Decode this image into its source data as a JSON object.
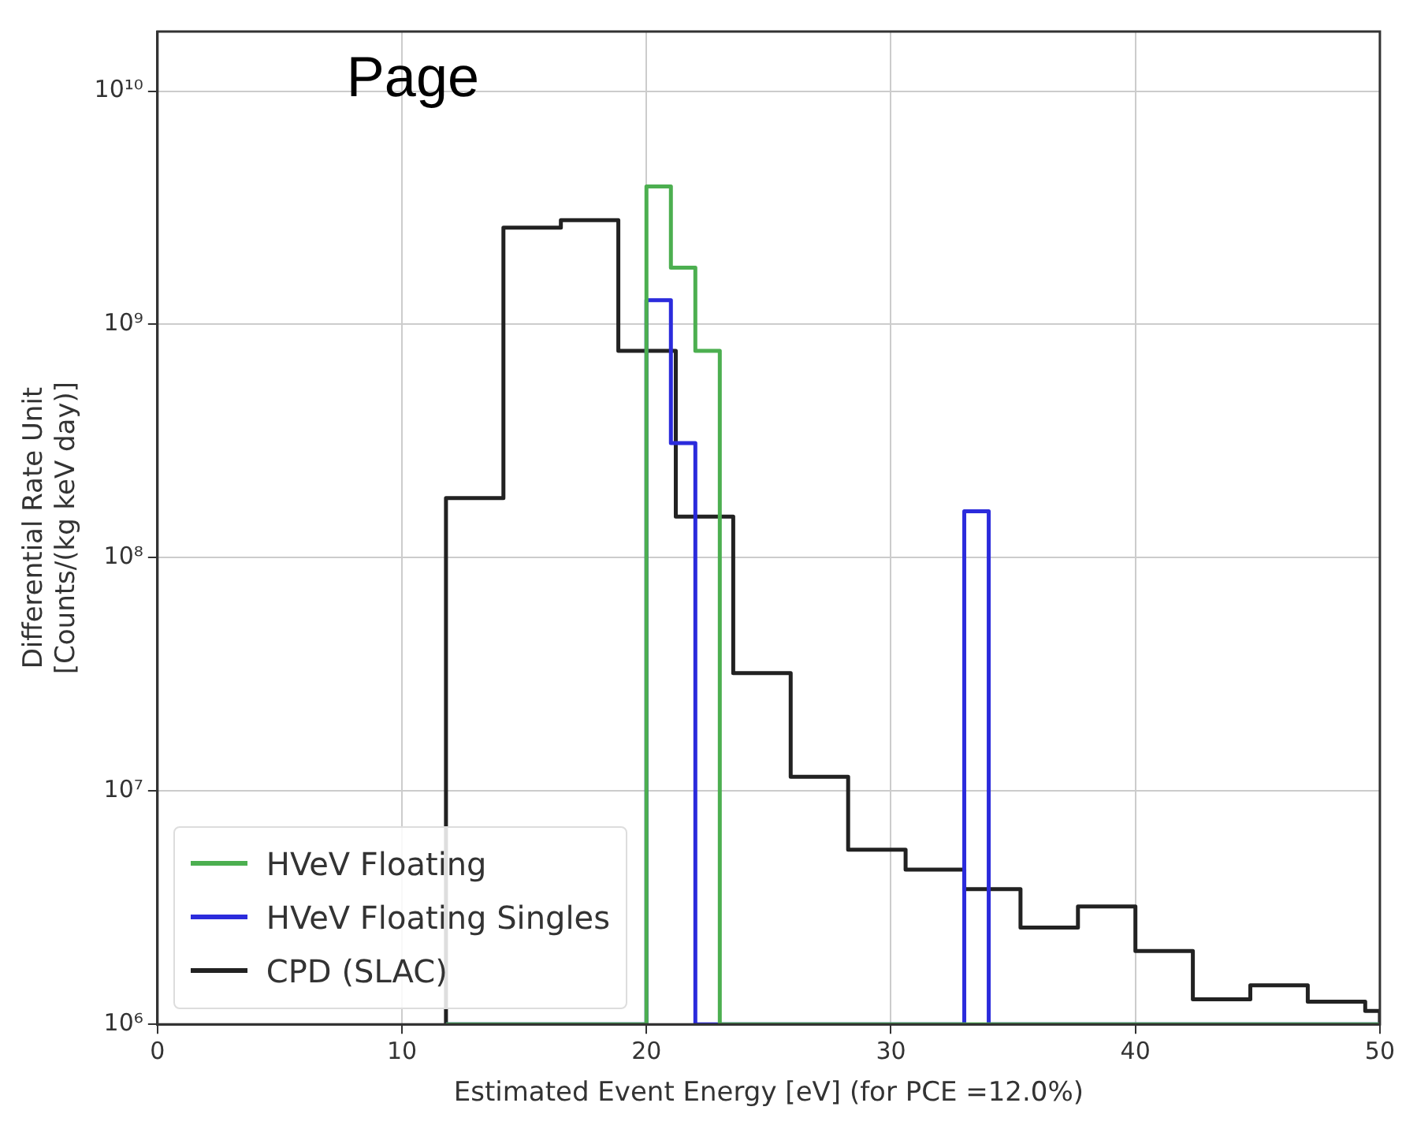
{
  "chart_data": {
    "type": "histogram",
    "xlabel": "Estimated Event Energy [eV] (for PCE =12.0%)",
    "ylabel": "Differential Rate Unit\n[Counts/(kg keV day)]",
    "annotations": [
      "Page"
    ],
    "bins": [
      11.8,
      14.15,
      16.5,
      18.85,
      20,
      21,
      21.2,
      22,
      23,
      23.55,
      25.9,
      28.25,
      30.6,
      33,
      34,
      35.3,
      37.65,
      40,
      42.35,
      44.7,
      47.05,
      49.4,
      50
    ],
    "series": [
      {
        "name": "HVeV Floating",
        "color": "#4caf50",
        "values": [
          null,
          null,
          null,
          null,
          3900000000.0,
          1750000000.0,
          1750000000.0,
          770000000.0,
          null,
          null,
          null,
          null,
          null,
          null,
          null,
          null,
          null,
          null,
          null,
          null,
          null,
          null
        ]
      },
      {
        "name": "HVeV Floating Singles",
        "color": "#2b2bdc",
        "values": [
          null,
          null,
          null,
          null,
          1270000000.0,
          310000000.0,
          310000000.0,
          null,
          null,
          null,
          null,
          null,
          null,
          158000000.0,
          null,
          null,
          null,
          null,
          null,
          null,
          null,
          null
        ]
      },
      {
        "name": "CPD (SLAC)",
        "color": "#222222",
        "values": [
          180000000.0,
          2600000000.0,
          2800000000.0,
          770000000.0,
          770000000.0,
          770000000.0,
          150000000.0,
          150000000.0,
          150000000.0,
          32000000.0,
          11500000.0,
          5600000.0,
          4600000.0,
          3800000.0,
          3800000.0,
          2600000.0,
          3200000.0,
          2060000.0,
          1280000.0,
          1470000.0,
          1250000.0,
          1140000.0
        ]
      }
    ],
    "xlim": [
      0,
      50
    ],
    "xticks": [
      0,
      10,
      20,
      30,
      40,
      50
    ],
    "ylim": [
      1000000.0,
      18000000000.0
    ],
    "yticks": [
      {
        "value": 1000000.0,
        "label": "10⁶"
      },
      {
        "value": 10000000.0,
        "label": "10⁷"
      },
      {
        "value": 100000000.0,
        "label": "10⁸"
      },
      {
        "value": 1000000000.0,
        "label": "10⁹"
      },
      {
        "value": 10000000000.0,
        "label": "10¹⁰"
      }
    ],
    "log": true,
    "grid": true,
    "legend": "bottom left"
  }
}
